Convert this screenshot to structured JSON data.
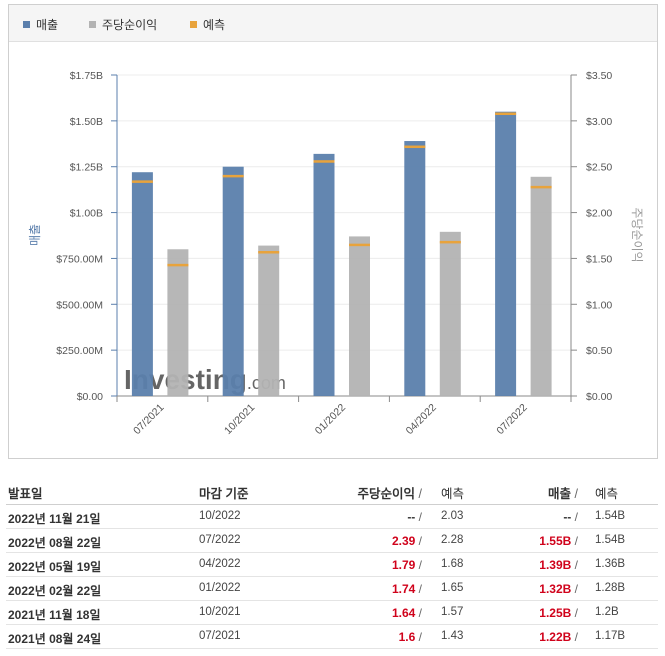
{
  "legend": {
    "revenue": "매출",
    "eps": "주당순이익",
    "forecast": "예측"
  },
  "colors": {
    "revenue": "#5b7fac",
    "eps": "#b3b3b3",
    "forecast": "#e8a33c"
  },
  "watermark": {
    "brand": "Investing",
    "suffix": ".com"
  },
  "chart_data": {
    "type": "bar",
    "categories": [
      "07/2021",
      "10/2021",
      "01/2022",
      "04/2022",
      "07/2022"
    ],
    "series": [
      {
        "name": "매출",
        "axis": "left",
        "values": [
          1.22,
          1.25,
          1.32,
          1.39,
          1.55
        ],
        "forecast": [
          1.17,
          1.2,
          1.28,
          1.36,
          1.54
        ]
      },
      {
        "name": "주당순이익",
        "axis": "right",
        "values": [
          1.6,
          1.64,
          1.74,
          1.79,
          2.39
        ],
        "forecast": [
          1.43,
          1.57,
          1.65,
          1.68,
          2.28
        ]
      }
    ],
    "ylabel": "매출",
    "y2label": "주당순이익",
    "ylim": [
      0,
      1.75
    ],
    "y2lim": [
      0,
      3.5
    ],
    "yticks": [
      "$0.00",
      "$250.00M",
      "$500.00M",
      "$750.00M",
      "$1.00B",
      "$1.25B",
      "$1.50B",
      "$1.75B"
    ],
    "y2ticks": [
      "$0.00",
      "$0.50",
      "$1.00",
      "$1.50",
      "$2.00",
      "$2.50",
      "$3.00",
      "$3.50"
    ],
    "grid": true,
    "legend_position": "top-left"
  },
  "table": {
    "headers": {
      "date": "발표일",
      "period": "마감 기준",
      "eps": "주당순이익",
      "forecast": "예측",
      "revenue": "매출",
      "separator": "/"
    },
    "rows": [
      {
        "date": "2022년 11월 21일",
        "period": "10/2022",
        "eps": "--",
        "eps_forecast": "2.03",
        "revenue": "--",
        "revenue_forecast": "1.54B",
        "highlight": false
      },
      {
        "date": "2022년 08월 22일",
        "period": "07/2022",
        "eps": "2.39",
        "eps_forecast": "2.28",
        "revenue": "1.55B",
        "revenue_forecast": "1.54B",
        "highlight": true
      },
      {
        "date": "2022년 05월 19일",
        "period": "04/2022",
        "eps": "1.79",
        "eps_forecast": "1.68",
        "revenue": "1.39B",
        "revenue_forecast": "1.36B",
        "highlight": true
      },
      {
        "date": "2022년 02월 22일",
        "period": "01/2022",
        "eps": "1.74",
        "eps_forecast": "1.65",
        "revenue": "1.32B",
        "revenue_forecast": "1.28B",
        "highlight": true
      },
      {
        "date": "2021년 11월 18일",
        "period": "10/2021",
        "eps": "1.64",
        "eps_forecast": "1.57",
        "revenue": "1.25B",
        "revenue_forecast": "1.2B",
        "highlight": true
      },
      {
        "date": "2021년 08월 24일",
        "period": "07/2021",
        "eps": "1.6",
        "eps_forecast": "1.43",
        "revenue": "1.22B",
        "revenue_forecast": "1.17B",
        "highlight": true
      }
    ]
  }
}
